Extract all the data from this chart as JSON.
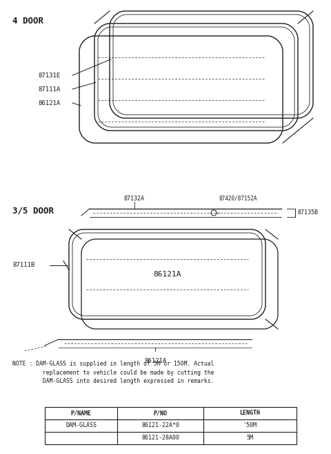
{
  "bg_color": "#ffffff",
  "section1_label": "4 DOOR",
  "section2_label": "3/5 DOOR",
  "note_text": "NOTE : DAM-GLASS is supplied in length of 5M or 150M. Actual\n         replacement to vehicle could be made by cutting the\n         DAM-GLASS into desired length expressed in remarks.",
  "table_headers": [
    "P/NAME",
    "P/NO",
    "LENGTH"
  ],
  "table_row1": [
    "DAM-GLASS",
    "86121-22A*0",
    "'50M"
  ],
  "table_row2": [
    "",
    "86121-28A00",
    "5M"
  ],
  "color": "#1a1a1a"
}
